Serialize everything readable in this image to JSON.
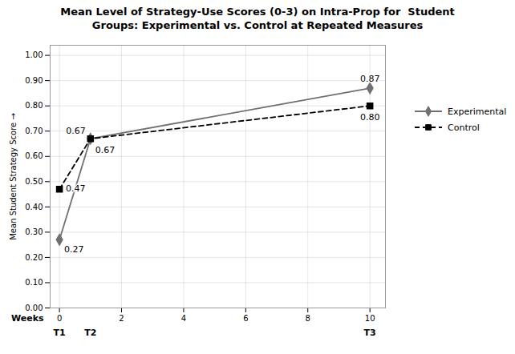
{
  "chart_data": {
    "type": "line",
    "title": "Mean Level of Strategy-Use Scores (0-3) on Intra-Prop for  Student\nGroups: Experimental vs. Control at Repeated Measures",
    "xlabel": "Weeks",
    "ylabel": "Mean Student Strategy Score",
    "x": [
      0,
      1,
      10
    ],
    "series": [
      {
        "name": "Experimental",
        "color": "#707070",
        "marker": "diamond",
        "line_style": "solid",
        "values": [
          0.27,
          0.67,
          0.87
        ]
      },
      {
        "name": "Control",
        "color": "#000000",
        "marker": "square",
        "line_style": "dashed",
        "values": [
          0.47,
          0.67,
          0.8
        ],
        "value_labels": [
          "0.47",
          "0.67",
          "0.80"
        ]
      }
    ],
    "xlim": [
      -0.3,
      10.5
    ],
    "xticks": [
      0,
      2,
      4,
      6,
      8,
      10
    ],
    "ylim": [
      0,
      1.04
    ],
    "yticks": [
      {
        "value": 0,
        "label": "0.00"
      },
      {
        "value": 0.1,
        "label": "0.10"
      },
      {
        "value": 0.2,
        "label": "0.20"
      },
      {
        "value": 0.3,
        "label": "0.30"
      },
      {
        "value": 0.4,
        "label": "0.40"
      },
      {
        "value": 0.5,
        "label": "0.50"
      },
      {
        "value": 0.6,
        "label": "0.60"
      },
      {
        "value": 0.7,
        "label": "0.70"
      },
      {
        "value": 0.8,
        "label": "0.80"
      },
      {
        "value": 0.9,
        "label": "0.90"
      },
      {
        "value": 1,
        "label": "1.00"
      }
    ],
    "grid": true,
    "legend": "right",
    "data_labels": true,
    "annotations": [
      {
        "text": "T1",
        "x": 0
      },
      {
        "text": "T2",
        "x": 1
      },
      {
        "text": "T3",
        "x": 10
      }
    ]
  }
}
